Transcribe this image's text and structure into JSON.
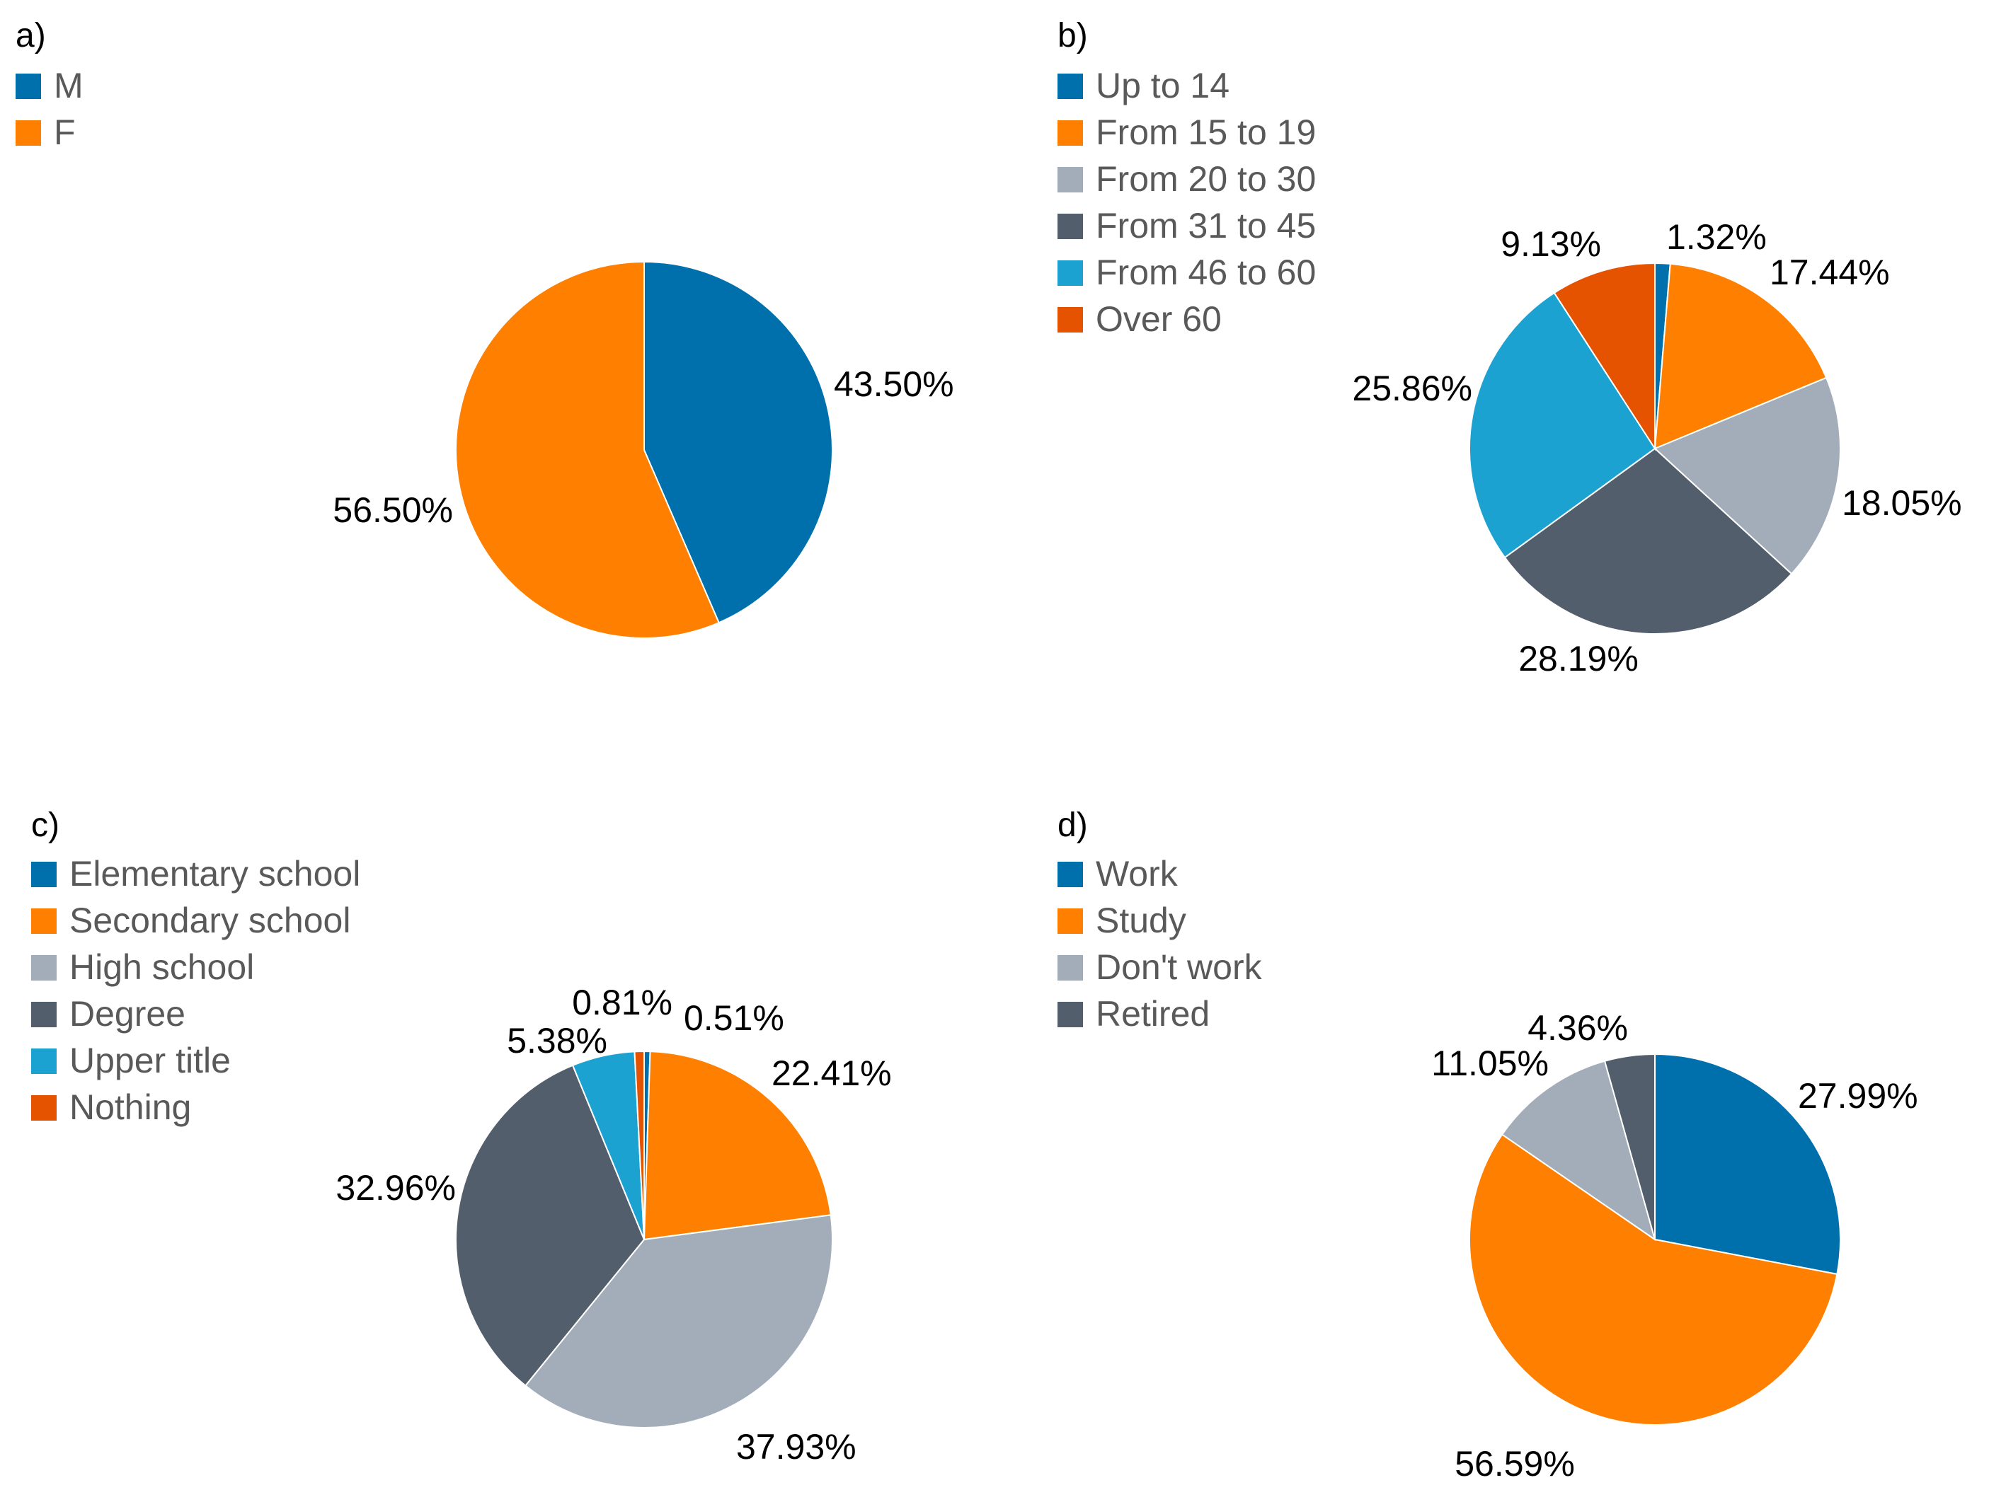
{
  "chart_data": [
    {
      "type": "pie",
      "panel": "a)",
      "categories": [
        "M",
        "F"
      ],
      "values": [
        43.5,
        56.5
      ],
      "value_labels": [
        "43.50%",
        "56.50%"
      ],
      "colors": [
        "#0070AD",
        "#FF8000"
      ],
      "legend_placement": "top-left"
    },
    {
      "type": "pie",
      "panel": "b)",
      "categories": [
        "Up to 14",
        "From 15 to 19",
        "From 20 to 30",
        "From 31 to 45",
        "From 46 to 60",
        "Over 60"
      ],
      "values": [
        1.32,
        17.44,
        18.05,
        28.19,
        25.86,
        9.13
      ],
      "value_labels": [
        "1.32%",
        "17.44%",
        "18.05%",
        "28.19%",
        "25.86%",
        "9.13%"
      ],
      "colors": [
        "#0070AD",
        "#FF8000",
        "#A2ADB9",
        "#525E6B",
        "#1CA2D1",
        "#E55200"
      ],
      "legend_placement": "top-left"
    },
    {
      "type": "pie",
      "panel": "c)",
      "categories": [
        "Elementary school",
        "Secondary school",
        "High school",
        "Degree",
        "Upper title",
        "Nothing"
      ],
      "values": [
        0.51,
        22.41,
        37.93,
        32.96,
        5.38,
        0.81
      ],
      "value_labels": [
        "0.51%",
        "22.41%",
        "37.93%",
        "32.96%",
        "5.38%",
        "0.81%"
      ],
      "colors": [
        "#0070AD",
        "#FF8000",
        "#A2ADB9",
        "#525E6B",
        "#1CA2D1",
        "#E55200"
      ],
      "legend_placement": "top-left"
    },
    {
      "type": "pie",
      "panel": "d)",
      "categories": [
        "Work",
        "Study",
        "Don't work",
        "Retired"
      ],
      "values": [
        27.99,
        56.59,
        11.05,
        4.36
      ],
      "value_labels": [
        "27.99%",
        "56.59%",
        "11.05%",
        "4.36%"
      ],
      "colors": [
        "#0070AD",
        "#FF8000",
        "#A2ADB9",
        "#525E6B"
      ],
      "legend_placement": "top-left"
    }
  ]
}
